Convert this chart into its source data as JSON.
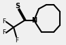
{
  "bg_color": "#f0f0f0",
  "line_color": "#000000",
  "line_width": 1.5,
  "font_size": 6.5,
  "text_color": "#000000",
  "S_label": "S",
  "N_label": "N",
  "F_labels": [
    "F",
    "F",
    "F"
  ]
}
